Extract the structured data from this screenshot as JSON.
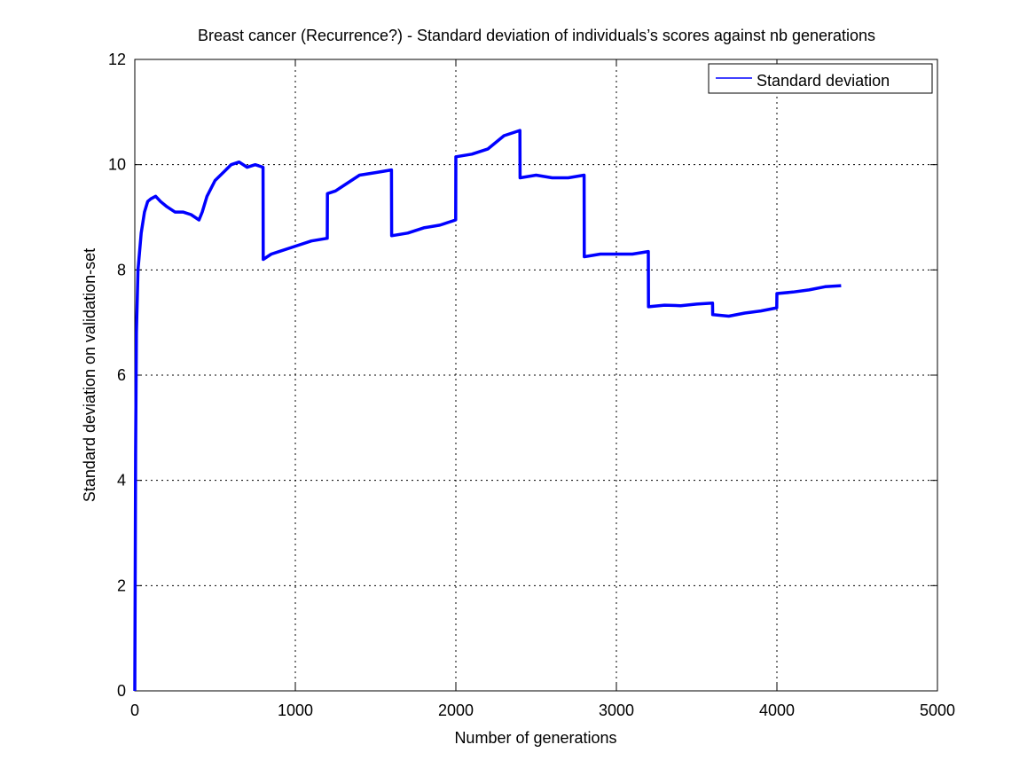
{
  "chart_data": {
    "type": "line",
    "title": "Breast cancer (Recurrence?) - Standard deviation of individuals’s scores against nb generations",
    "xlabel": "Number of generations",
    "ylabel": "Standard deviation on validation-set",
    "xlim": [
      0,
      5000
    ],
    "ylim": [
      0,
      12
    ],
    "xticks": [
      0,
      1000,
      2000,
      3000,
      4000,
      5000
    ],
    "yticks": [
      0,
      2,
      4,
      6,
      8,
      10,
      12
    ],
    "xtick_labels": [
      "0",
      "1000",
      "2000",
      "3000",
      "4000",
      "5000"
    ],
    "ytick_labels": [
      "0",
      "2",
      "4",
      "6",
      "8",
      "10",
      "12"
    ],
    "grid": true,
    "legend": {
      "position": "top-right",
      "entries": [
        "Standard deviation"
      ]
    },
    "series": [
      {
        "name": "Standard deviation",
        "color": "#0000ff",
        "points": [
          [
            0,
            0
          ],
          [
            5,
            4.5
          ],
          [
            10,
            6.8
          ],
          [
            20,
            8.0
          ],
          [
            40,
            8.7
          ],
          [
            60,
            9.1
          ],
          [
            80,
            9.3
          ],
          [
            100,
            9.35
          ],
          [
            130,
            9.4
          ],
          [
            160,
            9.3
          ],
          [
            200,
            9.2
          ],
          [
            250,
            9.1
          ],
          [
            300,
            9.1
          ],
          [
            350,
            9.05
          ],
          [
            400,
            8.95
          ],
          [
            420,
            9.1
          ],
          [
            450,
            9.4
          ],
          [
            500,
            9.7
          ],
          [
            550,
            9.85
          ],
          [
            600,
            10.0
          ],
          [
            650,
            10.05
          ],
          [
            700,
            9.95
          ],
          [
            750,
            10.0
          ],
          [
            799,
            9.95
          ],
          [
            800,
            8.2
          ],
          [
            850,
            8.3
          ],
          [
            900,
            8.35
          ],
          [
            1000,
            8.45
          ],
          [
            1100,
            8.55
          ],
          [
            1199,
            8.6
          ],
          [
            1200,
            9.45
          ],
          [
            1250,
            9.5
          ],
          [
            1300,
            9.6
          ],
          [
            1400,
            9.8
          ],
          [
            1500,
            9.85
          ],
          [
            1599,
            9.9
          ],
          [
            1600,
            8.65
          ],
          [
            1700,
            8.7
          ],
          [
            1800,
            8.8
          ],
          [
            1900,
            8.85
          ],
          [
            1999,
            8.95
          ],
          [
            2000,
            10.15
          ],
          [
            2100,
            10.2
          ],
          [
            2200,
            10.3
          ],
          [
            2300,
            10.55
          ],
          [
            2399,
            10.65
          ],
          [
            2400,
            9.75
          ],
          [
            2500,
            9.8
          ],
          [
            2600,
            9.75
          ],
          [
            2700,
            9.75
          ],
          [
            2799,
            9.8
          ],
          [
            2800,
            8.25
          ],
          [
            2900,
            8.3
          ],
          [
            3000,
            8.3
          ],
          [
            3100,
            8.3
          ],
          [
            3199,
            8.35
          ],
          [
            3200,
            7.3
          ],
          [
            3300,
            7.33
          ],
          [
            3400,
            7.32
          ],
          [
            3500,
            7.35
          ],
          [
            3599,
            7.37
          ],
          [
            3600,
            7.15
          ],
          [
            3700,
            7.12
          ],
          [
            3800,
            7.18
          ],
          [
            3900,
            7.22
          ],
          [
            3999,
            7.28
          ],
          [
            4000,
            7.55
          ],
          [
            4100,
            7.58
          ],
          [
            4200,
            7.62
          ],
          [
            4300,
            7.68
          ],
          [
            4400,
            7.7
          ]
        ]
      }
    ]
  }
}
